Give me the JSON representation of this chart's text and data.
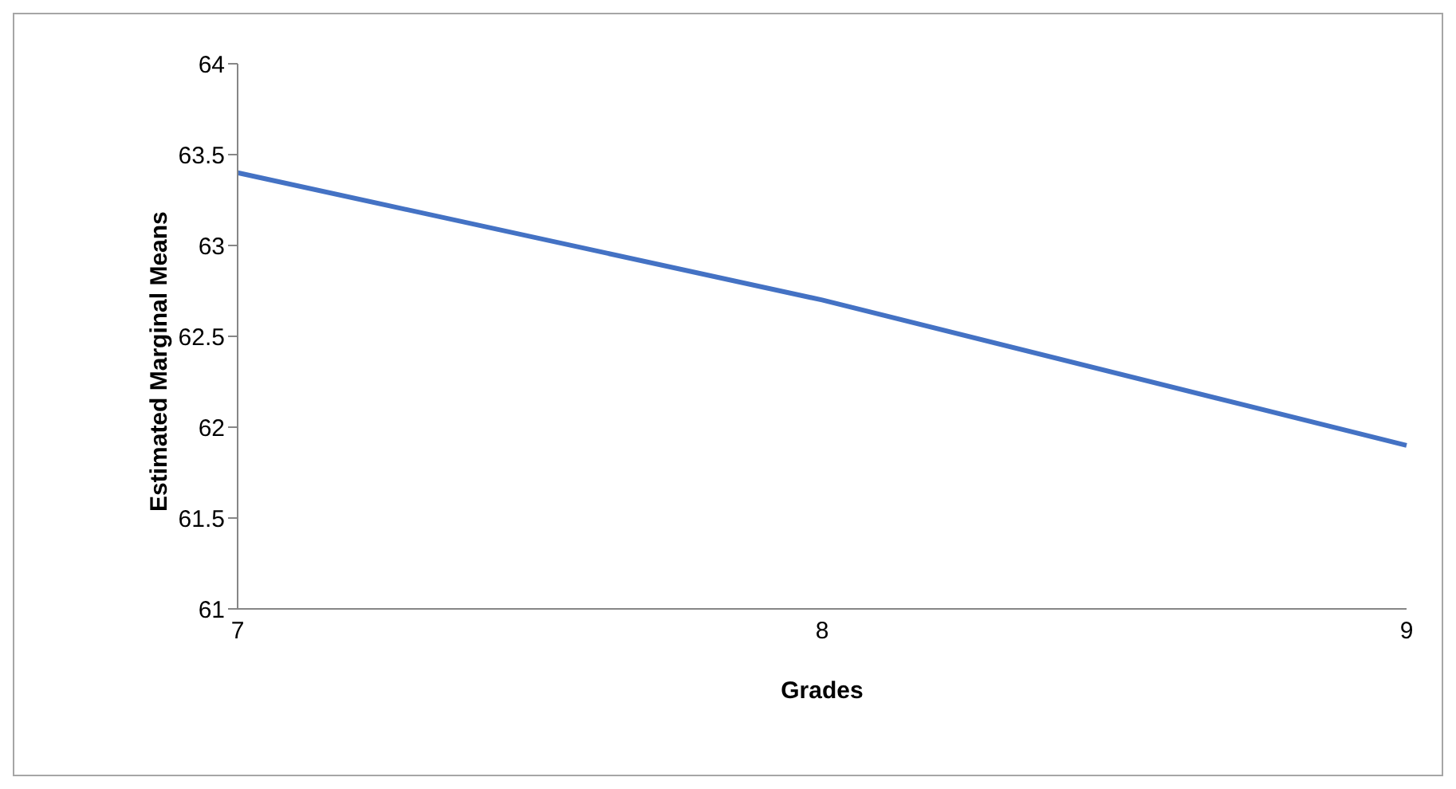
{
  "chart_data": {
    "type": "line",
    "xlabel": "Grades",
    "ylabel": "Estimated Marginal Means",
    "categories": [
      "7",
      "8",
      "9"
    ],
    "series": [
      {
        "color": "#4472c4",
        "values": [
          63.4,
          62.7,
          61.9
        ]
      }
    ],
    "ylim": [
      61,
      64
    ],
    "yticks": [
      61,
      61.5,
      62,
      62.5,
      63,
      63.5,
      64
    ],
    "grid": false,
    "legend": false
  }
}
